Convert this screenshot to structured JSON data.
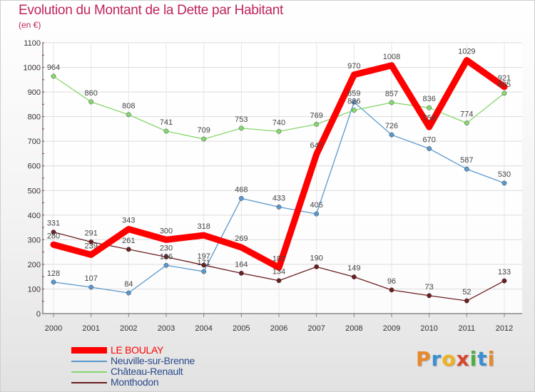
{
  "title": "Evolution du Montant de la Dette par Habitant",
  "subtitle": "(en €)",
  "brand": {
    "letters": [
      "P",
      "r",
      "o",
      "x",
      "i",
      "t",
      "i"
    ],
    "colors": [
      "#e8882a",
      "#3a8fd1",
      "#f0b21e",
      "#d9462c",
      "#4cae3b",
      "#3a8fd1",
      "#e8882a"
    ]
  },
  "chart_data": {
    "type": "line",
    "title": "Evolution du Montant de la Dette par Habitant",
    "subtitle": "(en €)",
    "x": [
      "2000",
      "2001",
      "2002",
      "2003",
      "2004",
      "2005",
      "2006",
      "2007",
      "2008",
      "2009",
      "2010",
      "2011",
      "2012"
    ],
    "ylim": [
      0,
      1100
    ],
    "yticks": [
      "0",
      "100",
      "200",
      "300",
      "400",
      "500",
      "600",
      "700",
      "800",
      "900",
      "1000",
      "1100"
    ],
    "grid": true,
    "legend_position": "bottom-left",
    "series": [
      {
        "name": "LE BOULAY",
        "color": "#ff0000",
        "values": [
          280,
          239,
          343,
          300,
          318,
          269,
          187,
          647,
          970,
          1008,
          758,
          1029,
          921
        ],
        "labels": [
          "280",
          "239",
          "343",
          "300",
          "318",
          "269",
          "187",
          "647",
          "970",
          "1008",
          "758",
          "1029",
          "921"
        ]
      },
      {
        "name": "Neuville-sur-Brenne",
        "color": "#5a98cc",
        "values": [
          128,
          107,
          84,
          196,
          171,
          468,
          433,
          405,
          859,
          726,
          670,
          587,
          530
        ],
        "labels": [
          "128",
          "107",
          "84",
          "196",
          "171",
          "468",
          "433",
          "405",
          "859",
          "726",
          "670",
          "587",
          "530"
        ]
      },
      {
        "name": "Château-Renault",
        "color": "#86d86c",
        "values": [
          964,
          860,
          808,
          741,
          709,
          753,
          740,
          769,
          826,
          857,
          836,
          774,
          895
        ],
        "labels": [
          "964",
          "860",
          "808",
          "741",
          "709",
          "753",
          "740",
          "769",
          "826",
          "857",
          "836",
          "774",
          "895"
        ]
      },
      {
        "name": "Monthodon",
        "color": "#6b1f1f",
        "values": [
          331,
          291,
          261,
          230,
          197,
          164,
          134,
          190,
          149,
          96,
          73,
          52,
          133
        ],
        "labels": [
          "331",
          "291",
          "261",
          "230",
          "197",
          "164",
          "134",
          "190",
          "149",
          "96",
          "73",
          "52",
          "133"
        ]
      }
    ]
  }
}
